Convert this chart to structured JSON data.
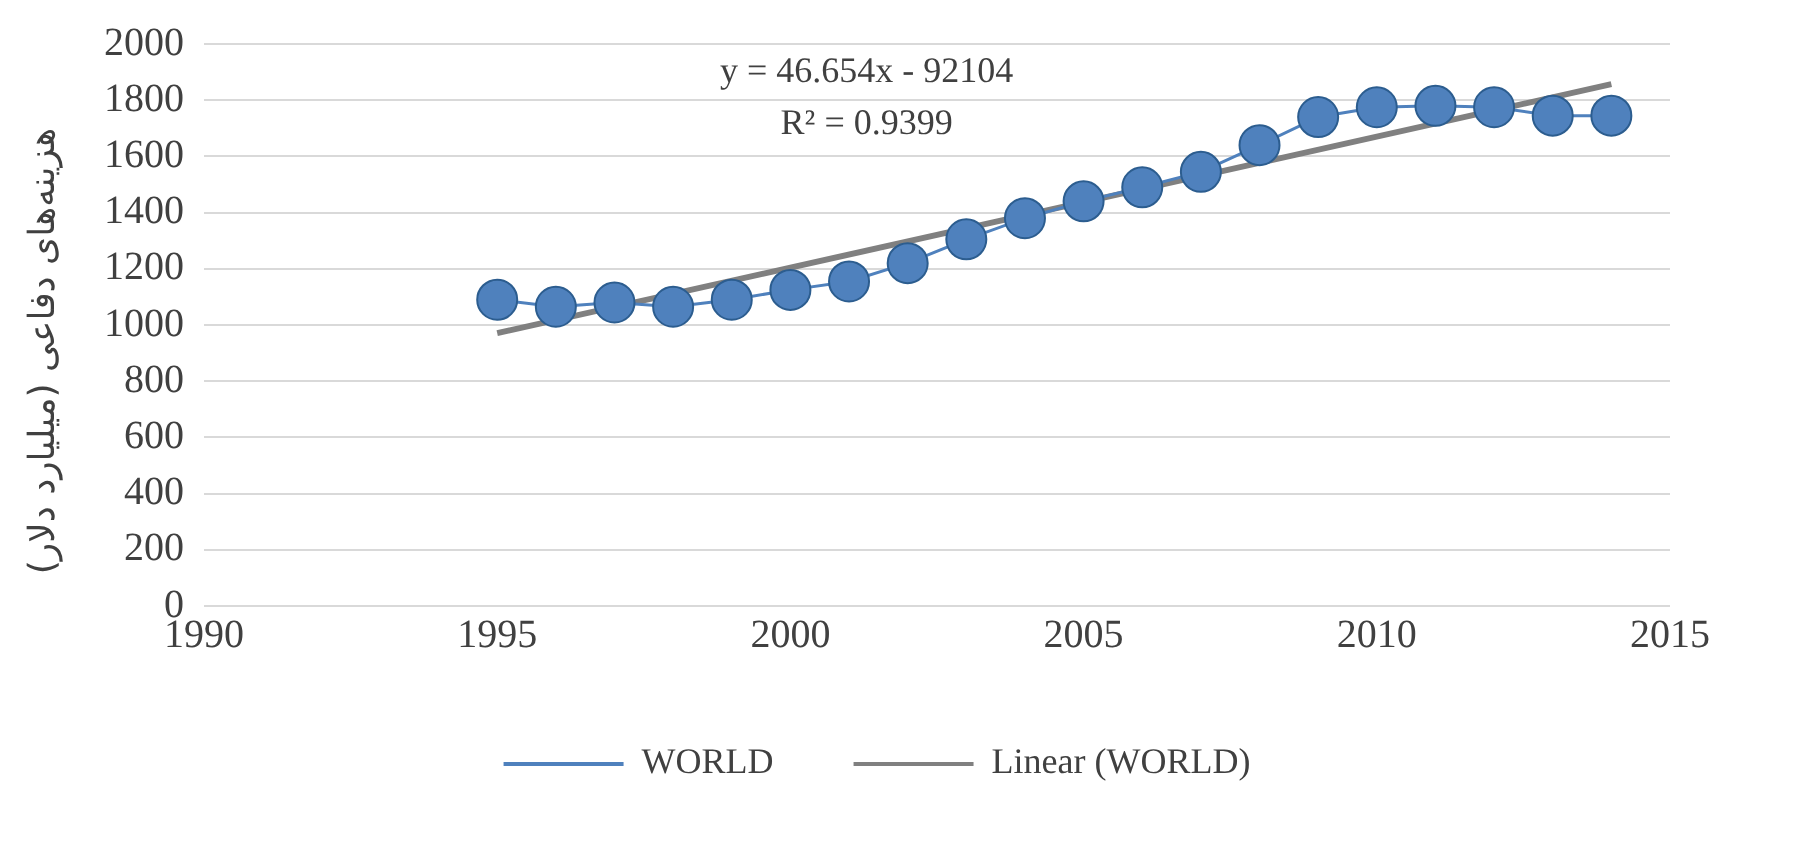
{
  "chart_data": {
    "type": "line",
    "ylabel": "هزینه‌های دفاعی (میلیارد دلار)",
    "x": [
      1995,
      1996,
      1997,
      1998,
      1999,
      2000,
      2001,
      2002,
      2003,
      2004,
      2005,
      2006,
      2007,
      2008,
      2009,
      2010,
      2011,
      2012,
      2013,
      2014
    ],
    "series": [
      {
        "name": "WORLD",
        "color": "#4f81bd",
        "marker": "circle",
        "values": [
          1090,
          1065,
          1080,
          1065,
          1090,
          1125,
          1155,
          1220,
          1305,
          1380,
          1440,
          1490,
          1545,
          1640,
          1740,
          1775,
          1780,
          1775,
          1745,
          1745
        ]
      },
      {
        "name": "Linear (WORLD)",
        "color": "#808080",
        "marker": "none",
        "x": [
          1995,
          2014
        ],
        "values": [
          971,
          1857
        ]
      }
    ],
    "xlim": [
      1990,
      2015
    ],
    "xticks": [
      1990,
      1995,
      2000,
      2005,
      2010,
      2015
    ],
    "ylim": [
      0,
      2000
    ],
    "yticks": [
      0,
      200,
      400,
      600,
      800,
      1000,
      1200,
      1400,
      1600,
      1800,
      2000
    ],
    "grid": "y",
    "legend": "bottom",
    "annotations": [
      "y = 46.654x - 92104",
      "R² = 0.9399"
    ]
  }
}
